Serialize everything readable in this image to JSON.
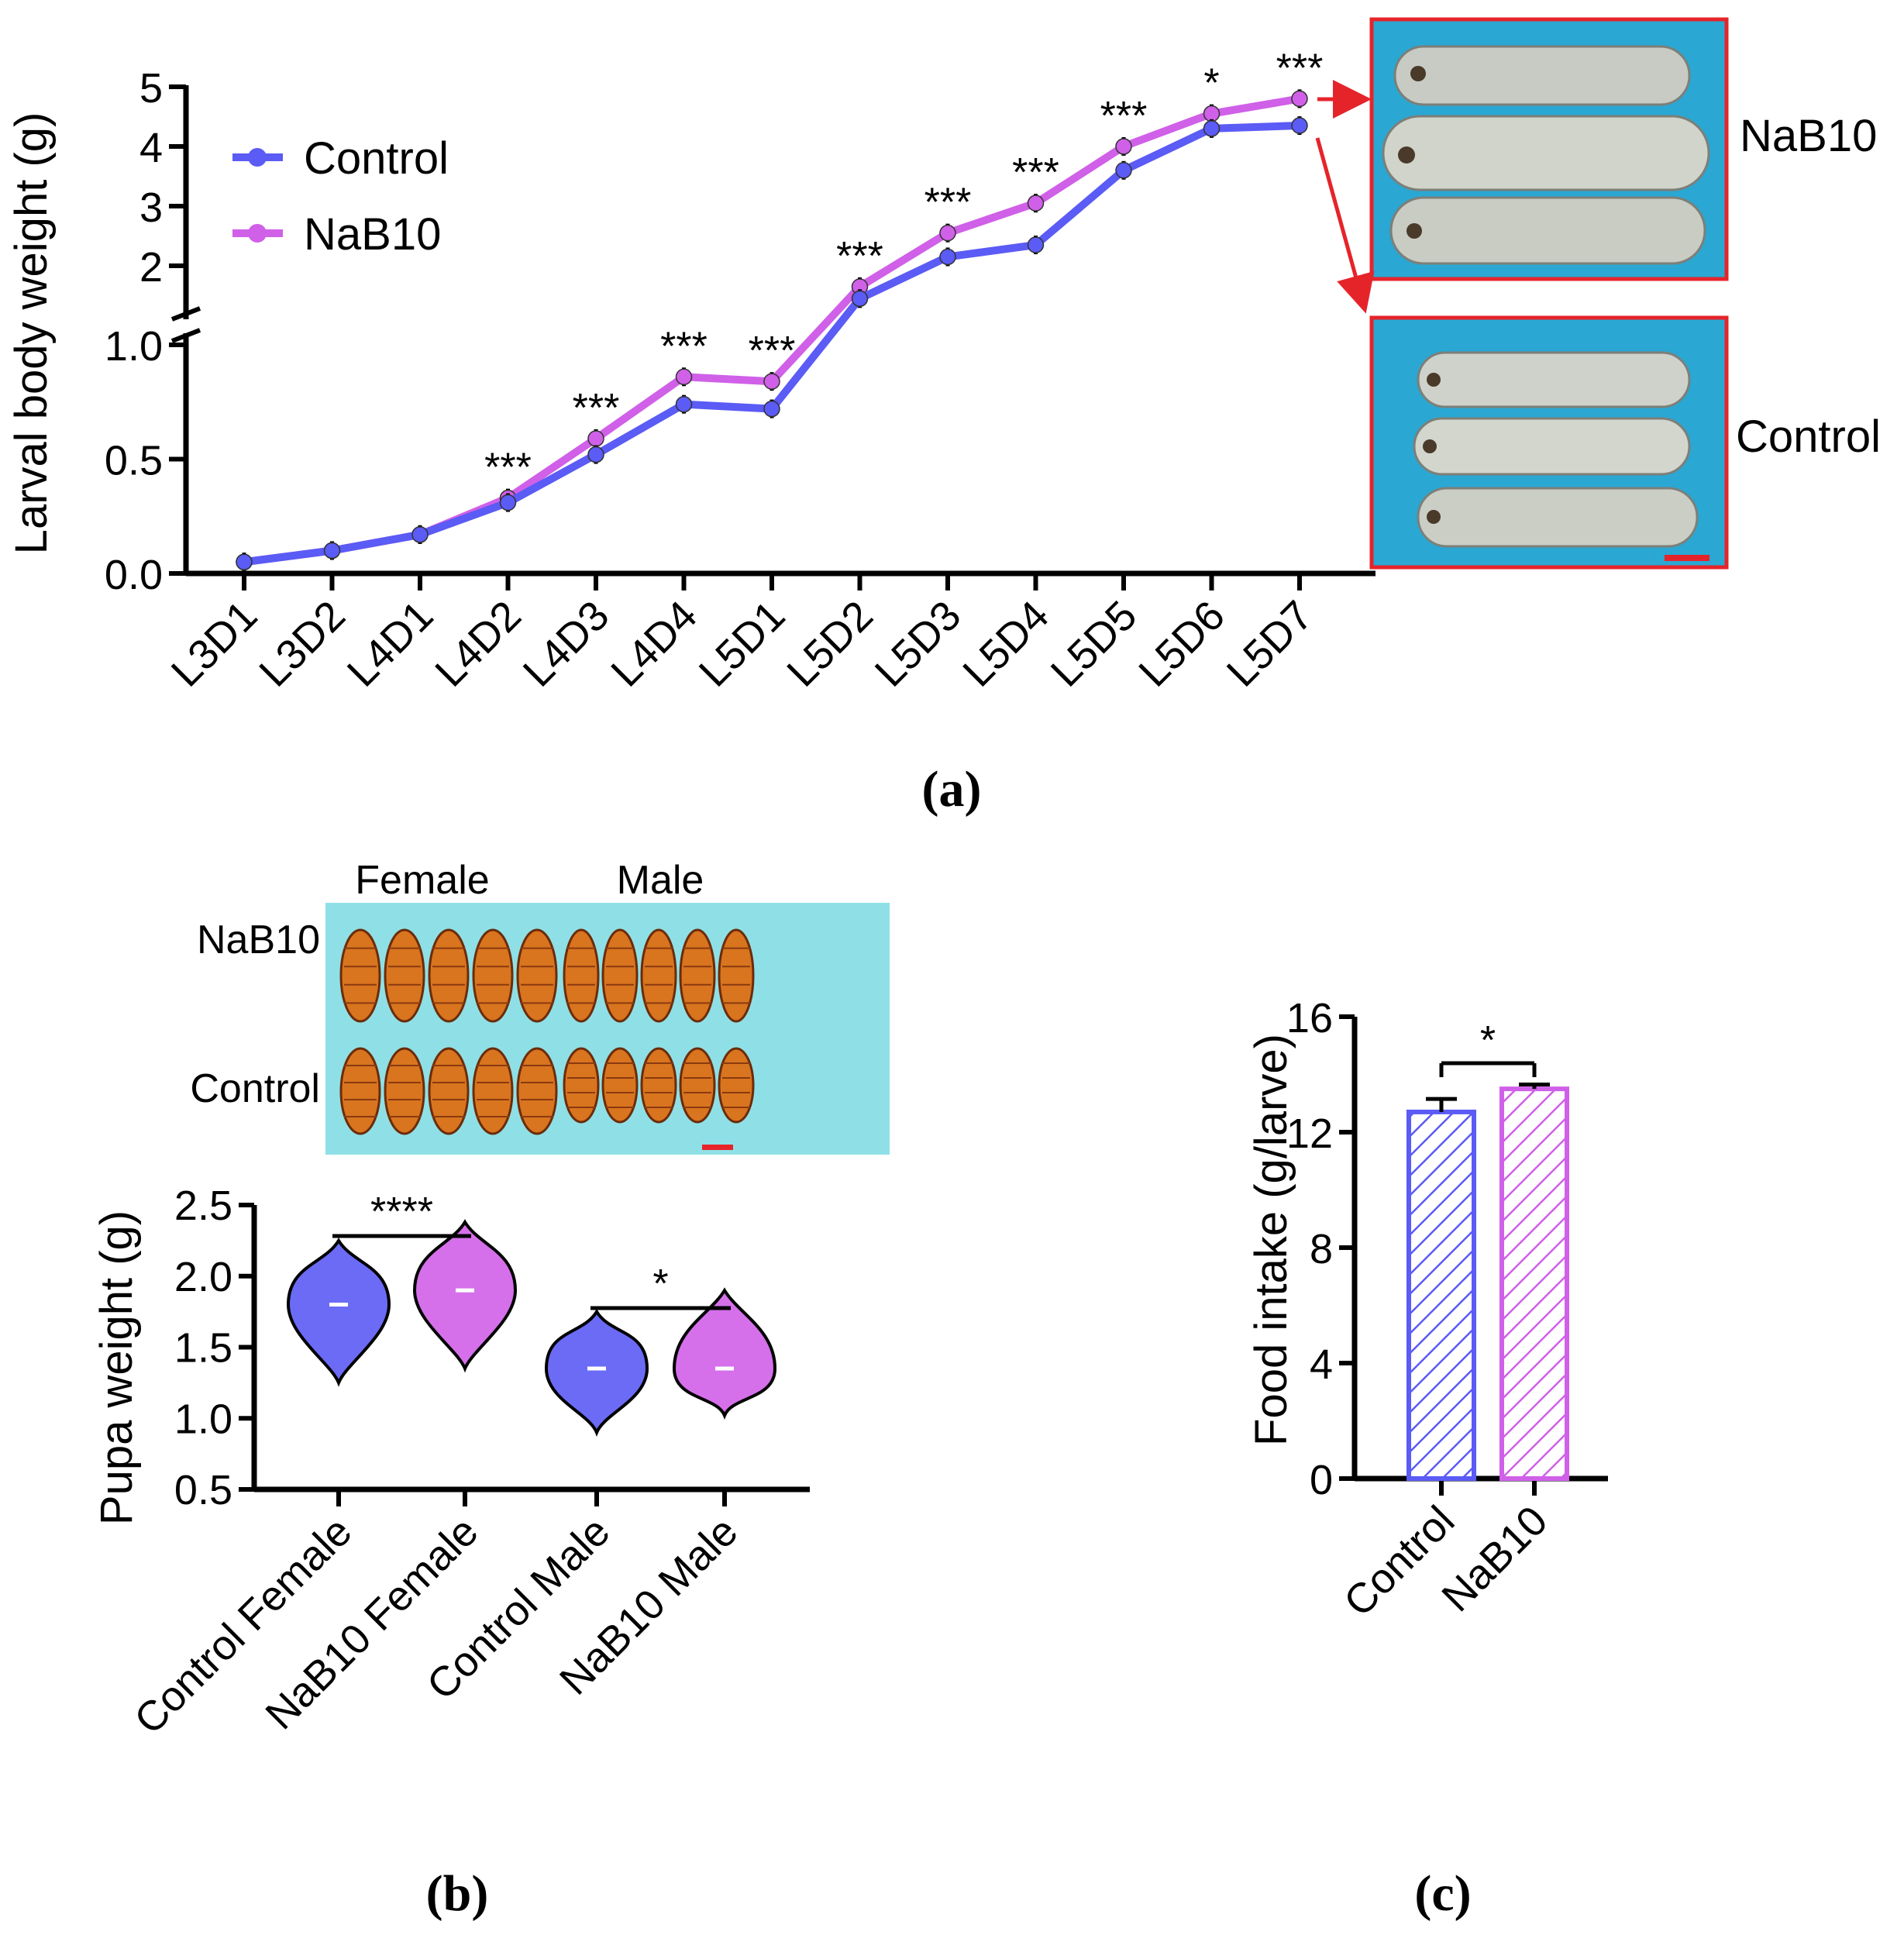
{
  "chart_data": [
    {
      "panel": "(a)",
      "type": "line",
      "ylabel": "Larval body weight (g)",
      "categories": [
        "L3D1",
        "L3D2",
        "L4D1",
        "L4D2",
        "L4D3",
        "L4D4",
        "L5D1",
        "L5D2",
        "L5D3",
        "L5D4",
        "L5D5",
        "L5D6",
        "L5D7"
      ],
      "yticks_lower": [
        "0.0",
        "0.5",
        "1.0"
      ],
      "yticks_upper": [
        "2",
        "3",
        "4",
        "5"
      ],
      "ylim_lower": [
        0,
        1.0
      ],
      "ylim_upper": [
        1.0,
        5
      ],
      "series": [
        {
          "name": "Control",
          "color": "#5b5bf5",
          "values": [
            0.05,
            0.1,
            0.17,
            0.31,
            0.52,
            0.74,
            0.72,
            1.45,
            2.15,
            2.35,
            3.6,
            4.3,
            4.35
          ]
        },
        {
          "name": "NaB10",
          "color": "#d060e8",
          "values": [
            0.05,
            0.1,
            0.17,
            0.33,
            0.59,
            0.86,
            0.84,
            1.65,
            2.55,
            3.05,
            4.0,
            4.55,
            4.8
          ]
        }
      ],
      "significance": [
        "",
        "",
        "",
        "***",
        "***",
        "***",
        "***",
        "***",
        "***",
        "***",
        "***",
        "*",
        "***"
      ],
      "photo_labels": [
        "NaB10",
        "Control"
      ]
    },
    {
      "panel": "(b)",
      "type": "violin",
      "ylabel": "Pupa weight (g)",
      "categories": [
        "Control Female",
        "NaB10 Female",
        "Control Male",
        "NaB10 Male"
      ],
      "yticks": [
        "0.5",
        "1.0",
        "1.5",
        "2.0",
        "2.5"
      ],
      "ylim": [
        0.5,
        2.5
      ],
      "series": [
        {
          "name": "Control Female",
          "color": "#5b5bf5",
          "median": 1.8,
          "min": 1.25,
          "max": 2.25
        },
        {
          "name": "NaB10 Female",
          "color": "#d060e8",
          "median": 1.9,
          "min": 1.35,
          "max": 2.38
        },
        {
          "name": "Control Male",
          "color": "#5b5bf5",
          "median": 1.35,
          "min": 0.9,
          "max": 1.75
        },
        {
          "name": "NaB10 Male",
          "color": "#d060e8",
          "median": 1.35,
          "min": 1.02,
          "max": 1.9
        }
      ],
      "significance": [
        {
          "pair": "Female",
          "label": "****"
        },
        {
          "pair": "Male",
          "label": "*"
        }
      ],
      "photo_row_labels": [
        "NaB10",
        "Control"
      ],
      "photo_col_labels": [
        "Female",
        "Male"
      ]
    },
    {
      "panel": "(c)",
      "type": "bar",
      "ylabel": "Food intake (g/larve)",
      "categories": [
        "Control",
        "NaB10"
      ],
      "values": [
        12.7,
        13.5
      ],
      "errors": [
        0.45,
        0.15
      ],
      "colors": [
        "#5b5bf5",
        "#d060e8"
      ],
      "yticks": [
        "0",
        "4",
        "8",
        "12",
        "16"
      ],
      "ylim": [
        0,
        16
      ],
      "significance": "*"
    }
  ]
}
